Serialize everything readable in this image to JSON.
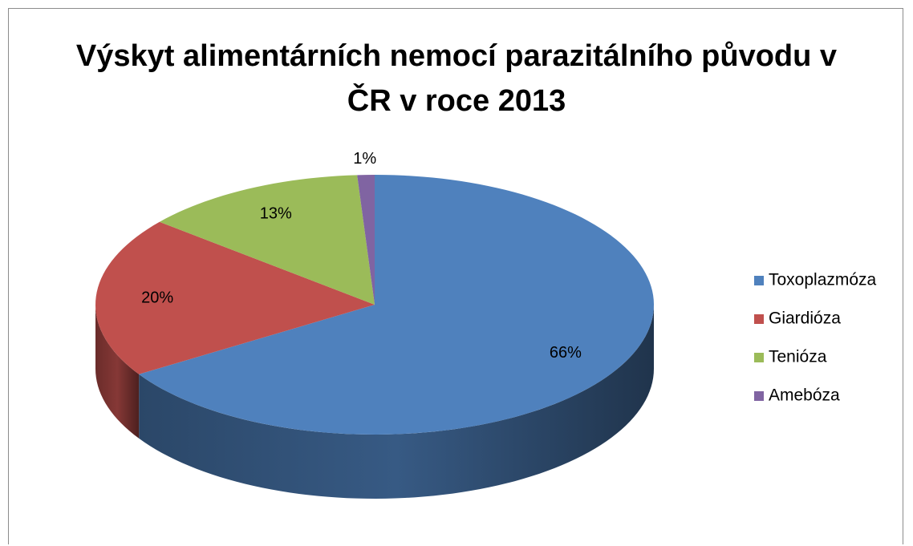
{
  "chart_data": {
    "type": "pie",
    "title": "Výskyt alimentárních nemocí parazitálního původu v ČR v roce 2013",
    "categories": [
      "Toxoplazmóza",
      "Giardióza",
      "Tenióza",
      "Amebóza"
    ],
    "values": [
      66,
      20,
      13,
      1
    ],
    "value_labels": [
      "66%",
      "20%",
      "13%",
      "1%"
    ],
    "colors": [
      "#4f81bd",
      "#c0504d",
      "#9bbb59",
      "#8064a2"
    ],
    "legend": "right"
  }
}
